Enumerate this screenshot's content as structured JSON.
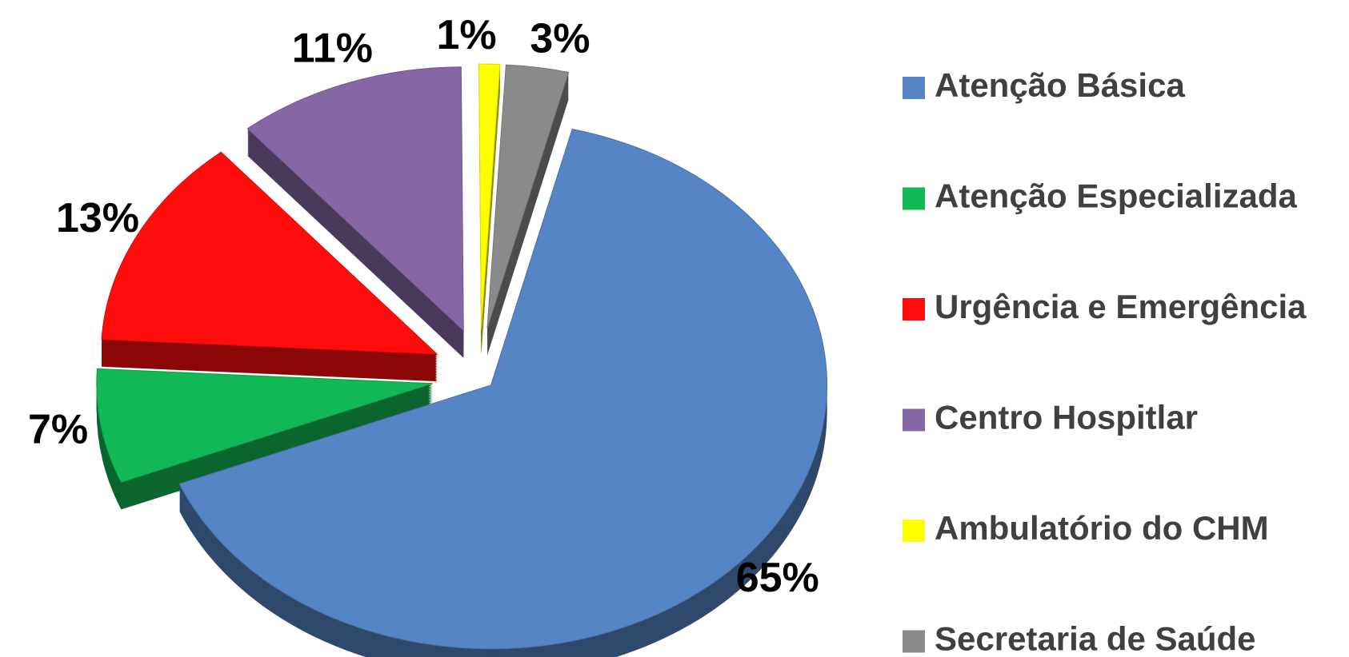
{
  "chart_data": {
    "type": "pie",
    "categories": [
      "Atenção Básica",
      "Atenção Especializada",
      "Urgência e Emergência",
      "Centro Hospitlar",
      "Ambulatório do CHM",
      "Secretaria de Saúde"
    ],
    "values": [
      65,
      7,
      13,
      11,
      1,
      3
    ],
    "value_labels": [
      "65%",
      "7%",
      "13%",
      "11%",
      "1%",
      "3%"
    ],
    "colors": [
      "#5585c4",
      "#12b856",
      "#ff0d0d",
      "#8567a6",
      "#ffff00",
      "#8a8a8a"
    ],
    "legend": "right"
  }
}
